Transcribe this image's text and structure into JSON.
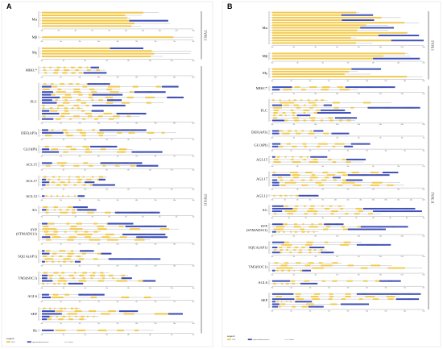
{
  "colors": {
    "cds": "#f2c94c",
    "utr": "#3d4fb8",
    "intron": "#9a9a9a",
    "divider": "#333333"
  },
  "legend": {
    "title": "Legend",
    "items": [
      {
        "key": "cds",
        "label": "CDS"
      },
      {
        "key": "utr",
        "label": "upstream/downstream"
      },
      {
        "key": "intron",
        "label": "Intron"
      }
    ]
  },
  "panels": [
    {
      "letter": "A",
      "types": [
        {
          "label": "TYPE I",
          "from": 0,
          "to": 2
        },
        {
          "label": "TYPE II",
          "from": 3,
          "to": 16
        }
      ],
      "families": [
        {
          "name": "Mα",
          "genes": 6,
          "style": "long",
          "scale": [
            "0kb",
            "2kb",
            "4kb",
            "6kb",
            "8kb",
            "10kb",
            "12kb",
            "14kb",
            "16kb",
            "18kb"
          ]
        },
        {
          "name": "Mβ",
          "genes": 1,
          "style": "single",
          "scale": [
            "0kb",
            "1kb",
            "2kb",
            "3kb",
            "4kb",
            "5kb",
            "6kb",
            "7kb",
            "8kb"
          ]
        },
        {
          "name": "Mγ",
          "genes": 4,
          "style": "long",
          "scale": [
            "0kb",
            "2kb",
            "4kb",
            "6kb",
            "8kb",
            "10kb",
            "12kb",
            "14kb"
          ]
        },
        {
          "name": "MIKC*",
          "genes": 3,
          "style": "multi",
          "scale": [
            "0kb",
            "5kb",
            "10kb",
            "15kb",
            "20kb",
            "25kb",
            "30kb",
            "35kb",
            "40kb"
          ]
        },
        {
          "name": "FLC",
          "genes": 14,
          "style": "multi",
          "scale": [
            "0kb",
            "5kb",
            "10kb",
            "15kb",
            "20kb",
            "25kb",
            "30kb",
            "35kb",
            "40kb"
          ]
        },
        {
          "name": "DEF(AP3)",
          "genes": 3,
          "style": "multi",
          "scale": [
            "0kb",
            "1kb",
            "2kb",
            "3kb",
            "4kb",
            "5kb",
            "6kb",
            "7kb"
          ]
        },
        {
          "name": "GLO(PI)",
          "genes": 3,
          "style": "multi",
          "scale": [
            "0kb",
            "1kb",
            "2kb",
            "3kb",
            "4kb",
            "5kb",
            "6kb",
            "7kb",
            "8kb"
          ]
        },
        {
          "name": "AGL15",
          "genes": 2,
          "style": "multi",
          "scale": [
            "0kb",
            "2kb",
            "4kb",
            "6kb",
            "8kb",
            "10kb",
            "12kb",
            "14kb"
          ]
        },
        {
          "name": "AGL17",
          "genes": 4,
          "style": "multi",
          "scale": [
            "0kb",
            "5kb",
            "10kb",
            "15kb",
            "20kb",
            "25kb",
            "30kb",
            "35kb"
          ]
        },
        {
          "name": "AGL12",
          "genes": 1,
          "style": "multi",
          "scale": [
            "0kb",
            "2kb",
            "4kb",
            "6kb",
            "8kb",
            "10kb",
            "12kb",
            "14kb",
            "16kb"
          ]
        },
        {
          "name": "AG",
          "genes": 3,
          "style": "multi",
          "scale": [
            "0kb",
            "1kb",
            "2kb",
            "3kb",
            "4kb",
            "5kb",
            "6kb",
            "7kb",
            "8kb",
            "9kb"
          ]
        },
        {
          "name": "SVP\n(STMADS11)",
          "genes": 7,
          "style": "multi",
          "scale": [
            "0kb",
            "5kb",
            "10kb",
            "15kb",
            "20kb",
            "25kb",
            "30kb",
            "35kb",
            "40kb"
          ]
        },
        {
          "name": "SQUA(AP1)",
          "genes": 5,
          "style": "multi",
          "scale": [
            "0kb",
            "2kb",
            "4kb",
            "6kb",
            "8kb",
            "10kb",
            "12kb",
            "14kb",
            "16kb"
          ]
        },
        {
          "name": "TM3(SOC1)",
          "genes": 5,
          "style": "multi",
          "scale": [
            "0kb",
            "2kb",
            "4kb",
            "6kb",
            "8kb",
            "10kb",
            "12kb",
            "14kb"
          ]
        },
        {
          "name": "AGL6",
          "genes": 2,
          "style": "multi",
          "scale": [
            "0kb",
            "1kb",
            "2kb",
            "3kb",
            "4kb",
            "5kb",
            "6kb",
            "7kb",
            "8kb"
          ]
        },
        {
          "name": "SEP",
          "genes": 5,
          "style": "multi",
          "scale": [
            "0kb",
            "2kb",
            "4kb",
            "6kb",
            "8kb",
            "10kb",
            "12kb",
            "14kb",
            "16kb"
          ]
        },
        {
          "name": "Bs",
          "genes": 1,
          "style": "multi",
          "scale": [
            "0kb",
            "1kb",
            "2kb",
            "3kb",
            "4kb",
            "5kb",
            "6kb",
            "7kb"
          ]
        }
      ]
    },
    {
      "letter": "B",
      "types": [
        {
          "label": "TYPE I",
          "from": 0,
          "to": 2
        },
        {
          "label": "TYPE II",
          "from": 3,
          "to": 15
        }
      ],
      "families": [
        {
          "name": "Mα",
          "genes": 13,
          "style": "long",
          "scale": [
            "0kb",
            "2kb",
            "4kb",
            "6kb",
            "8kb",
            "10kb",
            "12kb",
            "14kb"
          ]
        },
        {
          "name": "Mβ",
          "genes": 3,
          "style": "long",
          "scale": [
            "0kb",
            "2kb",
            "4kb",
            "6kb",
            "8kb",
            "10kb",
            "12kb"
          ]
        },
        {
          "name": "Mγ",
          "genes": 4,
          "style": "long",
          "scale": [
            "0kb",
            "2kb",
            "4kb",
            "6kb",
            "8kb",
            "10kb",
            "12kb",
            "14kb",
            "16kb"
          ]
        },
        {
          "name": "MIKC*",
          "genes": 2,
          "style": "multi",
          "scale": [
            "0kb",
            "5kb",
            "10kb",
            "15kb",
            "20kb",
            "25kb",
            "30kb",
            "35kb"
          ]
        },
        {
          "name": "FLC",
          "genes": 9,
          "style": "multi",
          "scale": [
            "0kb",
            "5kb",
            "10kb",
            "15kb",
            "20kb",
            "25kb",
            "30kb",
            "35kb"
          ]
        },
        {
          "name": "DEF(AP3)",
          "genes": 2,
          "style": "multi",
          "scale": [
            "0kb",
            "1kb",
            "2kb",
            "3kb",
            "4kb",
            "5kb",
            "6kb",
            "7kb"
          ]
        },
        {
          "name": "GLO(PI)",
          "genes": 2,
          "style": "multi",
          "scale": [
            "0kb",
            "1kb",
            "2kb",
            "3kb",
            "4kb",
            "5kb",
            "6kb",
            "7kb",
            "8kb"
          ]
        },
        {
          "name": "AGL15",
          "genes": 3,
          "style": "multi",
          "scale": [
            "0kb",
            "2kb",
            "4kb",
            "6kb",
            "8kb",
            "10kb",
            "12kb"
          ]
        },
        {
          "name": "AGL17",
          "genes": 6,
          "style": "multi",
          "scale": [
            "0kb",
            "5kb",
            "10kb",
            "15kb",
            "20kb",
            "25kb",
            "30kb"
          ]
        },
        {
          "name": "AGL12",
          "genes": 1,
          "style": "multi",
          "scale": [
            "0kb",
            "2kb",
            "4kb",
            "6kb",
            "8kb",
            "10kb",
            "12kb",
            "14kb",
            "16kb",
            "18kb",
            "20kb",
            "22kb",
            "24kb"
          ]
        },
        {
          "name": "AG",
          "genes": 4,
          "style": "multi",
          "scale": [
            "0kb",
            "1kb",
            "2kb",
            "3kb",
            "4kb",
            "5kb",
            "6kb",
            "7kb",
            "8kb",
            "9kb"
          ]
        },
        {
          "name": "SVP\n(STMADS11)",
          "genes": 4,
          "style": "multi",
          "scale": [
            "0kb",
            "5kb",
            "10kb",
            "15kb",
            "20kb",
            "25kb",
            "30kb",
            "35kb"
          ]
        },
        {
          "name": "SQUA(AP1)",
          "genes": 5,
          "style": "multi",
          "scale": [
            "0kb",
            "2kb",
            "4kb",
            "6kb",
            "8kb",
            "10kb",
            "12kb",
            "14kb"
          ]
        },
        {
          "name": "TM3(SOC1)",
          "genes": 4,
          "style": "multi",
          "scale": [
            "0kb",
            "2kb",
            "4kb",
            "6kb",
            "8kb",
            "10kb",
            "12kb",
            "14kb"
          ]
        },
        {
          "name": "AGL6",
          "genes": 2,
          "style": "multi",
          "scale": [
            "0kb",
            "1kb",
            "2kb",
            "3kb",
            "4kb",
            "5kb",
            "6kb",
            "7kb",
            "8kb"
          ]
        },
        {
          "name": "SEP",
          "genes": 6,
          "style": "multi",
          "scale": [
            "0kb",
            "2kb",
            "4kb",
            "6kb",
            "8kb",
            "10kb",
            "12kb",
            "14kb",
            "16kb"
          ]
        }
      ]
    }
  ]
}
